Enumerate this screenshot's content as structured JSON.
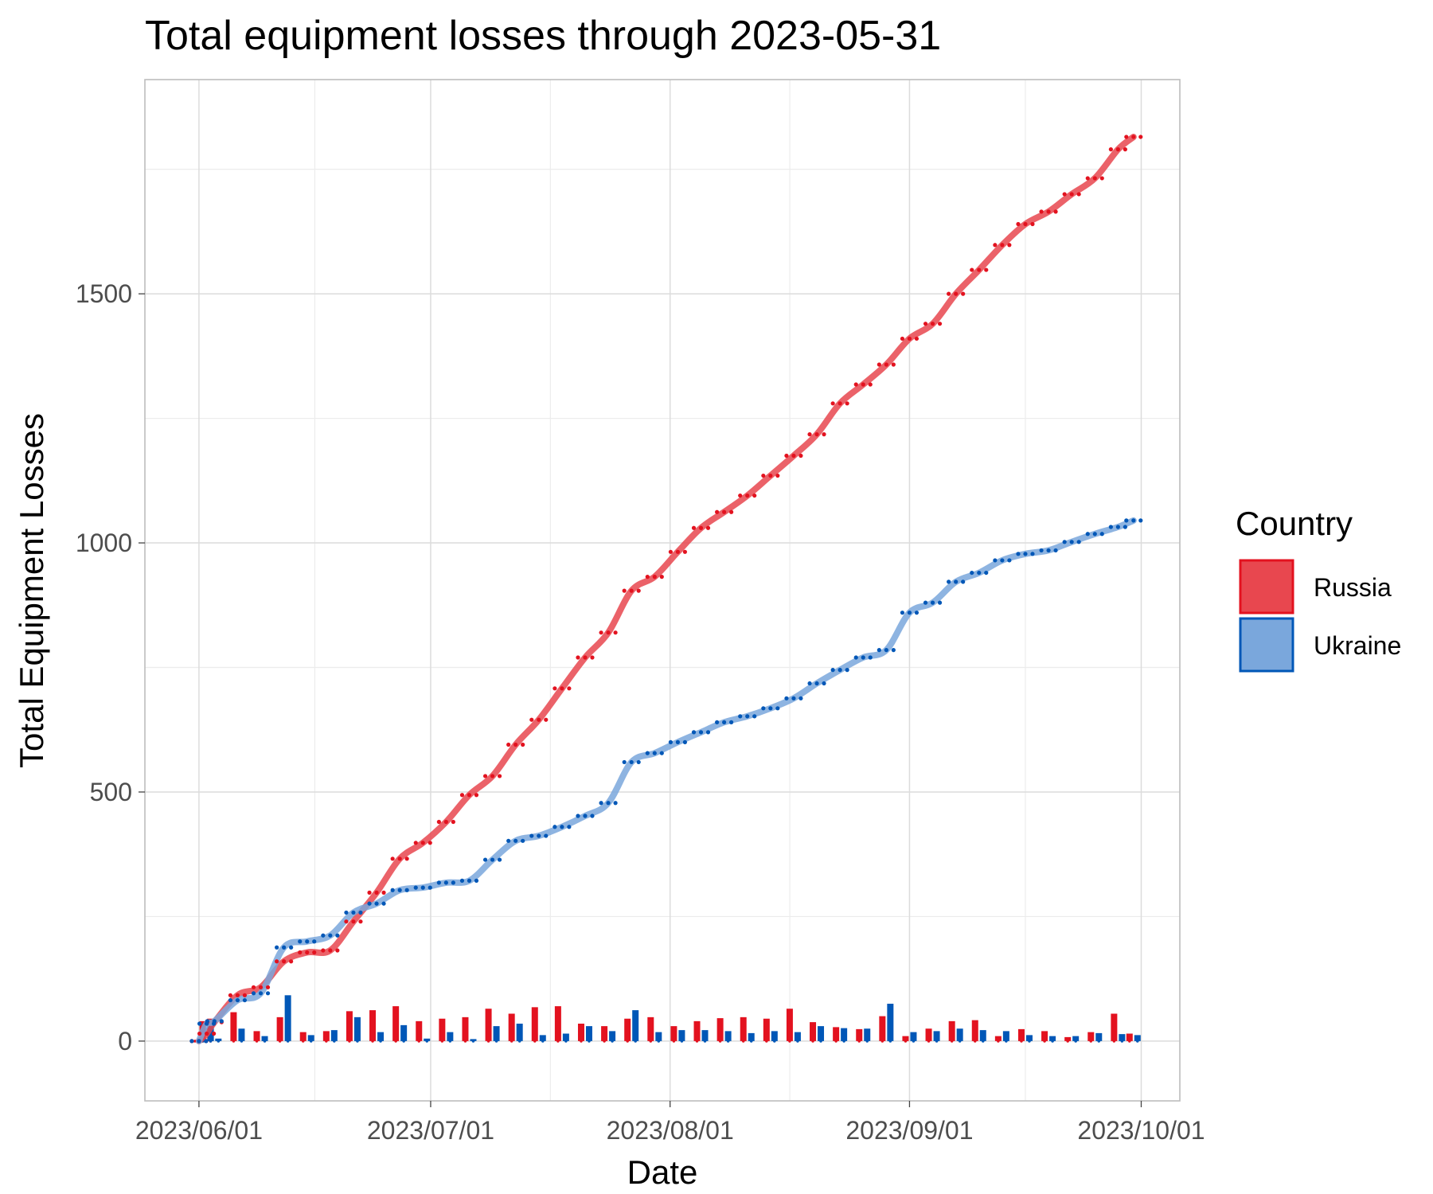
{
  "chart_data": {
    "type": "line",
    "title": "Total equipment losses through 2023-05-31",
    "xlabel": "Date",
    "ylabel": "Total Equipment Losses",
    "x_ticks": [
      "2023/06/01",
      "2023/07/01",
      "2023/08/01",
      "2023/09/01",
      "2023/10/01"
    ],
    "y_ticks": [
      0,
      500,
      1000,
      1500
    ],
    "xlim": [
      "2023-05-25",
      "2023-10-06"
    ],
    "ylim": [
      -120,
      1930
    ],
    "grid": true,
    "legend": {
      "title": "Country",
      "position": "right"
    },
    "series": [
      {
        "name": "Russia",
        "color": "#e8474f",
        "point_color": "#e3121f",
        "dates": [
          "2023-06-01",
          "2023-06-02",
          "2023-06-03",
          "2023-06-06",
          "2023-06-09",
          "2023-06-12",
          "2023-06-15",
          "2023-06-18",
          "2023-06-21",
          "2023-06-24",
          "2023-06-27",
          "2023-06-30",
          "2023-07-03",
          "2023-07-06",
          "2023-07-09",
          "2023-07-12",
          "2023-07-15",
          "2023-07-18",
          "2023-07-21",
          "2023-07-24",
          "2023-07-27",
          "2023-07-30",
          "2023-08-02",
          "2023-08-05",
          "2023-08-08",
          "2023-08-11",
          "2023-08-14",
          "2023-08-17",
          "2023-08-20",
          "2023-08-23",
          "2023-08-26",
          "2023-08-29",
          "2023-09-01",
          "2023-09-04",
          "2023-09-07",
          "2023-09-10",
          "2023-09-13",
          "2023-09-16",
          "2023-09-19",
          "2023-09-22",
          "2023-09-25",
          "2023-09-28",
          "2023-09-30"
        ],
        "cumulative": [
          0,
          15,
          38,
          92,
          108,
          160,
          178,
          182,
          240,
          298,
          366,
          398,
          440,
          494,
          532,
          595,
          645,
          708,
          770,
          820,
          904,
          932,
          982,
          1030,
          1062,
          1095,
          1135,
          1175,
          1218,
          1280,
          1318,
          1358,
          1410,
          1440,
          1500,
          1548,
          1598,
          1640,
          1665,
          1700,
          1732,
          1790,
          1815
        ],
        "daily": [
          0,
          40,
          45,
          58,
          20,
          48,
          18,
          20,
          60,
          62,
          70,
          40,
          45,
          48,
          65,
          55,
          68,
          70,
          35,
          30,
          45,
          48,
          30,
          40,
          46,
          48,
          45,
          65,
          38,
          28,
          24,
          50,
          10,
          25,
          40,
          42,
          10,
          24,
          20,
          8,
          18,
          55,
          15
        ]
      },
      {
        "name": "Ukraine",
        "color": "#7aa7dc",
        "point_color": "#0057b7",
        "dates": [
          "2023-06-01",
          "2023-06-02",
          "2023-06-03",
          "2023-06-06",
          "2023-06-09",
          "2023-06-12",
          "2023-06-15",
          "2023-06-18",
          "2023-06-21",
          "2023-06-24",
          "2023-06-27",
          "2023-06-30",
          "2023-07-03",
          "2023-07-06",
          "2023-07-09",
          "2023-07-12",
          "2023-07-15",
          "2023-07-18",
          "2023-07-21",
          "2023-07-24",
          "2023-07-27",
          "2023-07-30",
          "2023-08-02",
          "2023-08-05",
          "2023-08-08",
          "2023-08-11",
          "2023-08-14",
          "2023-08-17",
          "2023-08-20",
          "2023-08-23",
          "2023-08-26",
          "2023-08-29",
          "2023-09-01",
          "2023-09-04",
          "2023-09-07",
          "2023-09-10",
          "2023-09-13",
          "2023-09-16",
          "2023-09-19",
          "2023-09-22",
          "2023-09-25",
          "2023-09-28",
          "2023-09-30"
        ],
        "cumulative": [
          0,
          35,
          40,
          82,
          96,
          188,
          200,
          212,
          258,
          276,
          303,
          308,
          318,
          322,
          364,
          402,
          412,
          430,
          452,
          478,
          560,
          578,
          600,
          620,
          640,
          652,
          668,
          688,
          718,
          745,
          770,
          785,
          860,
          880,
          922,
          940,
          965,
          978,
          985,
          1002,
          1018,
          1032,
          1045
        ],
        "daily": [
          0,
          35,
          5,
          25,
          10,
          92,
          12,
          22,
          48,
          18,
          32,
          5,
          18,
          4,
          30,
          35,
          12,
          15,
          30,
          20,
          62,
          18,
          22,
          22,
          20,
          16,
          20,
          18,
          30,
          26,
          25,
          75,
          18,
          20,
          25,
          22,
          20,
          12,
          10,
          10,
          16,
          14,
          12
        ]
      }
    ]
  }
}
